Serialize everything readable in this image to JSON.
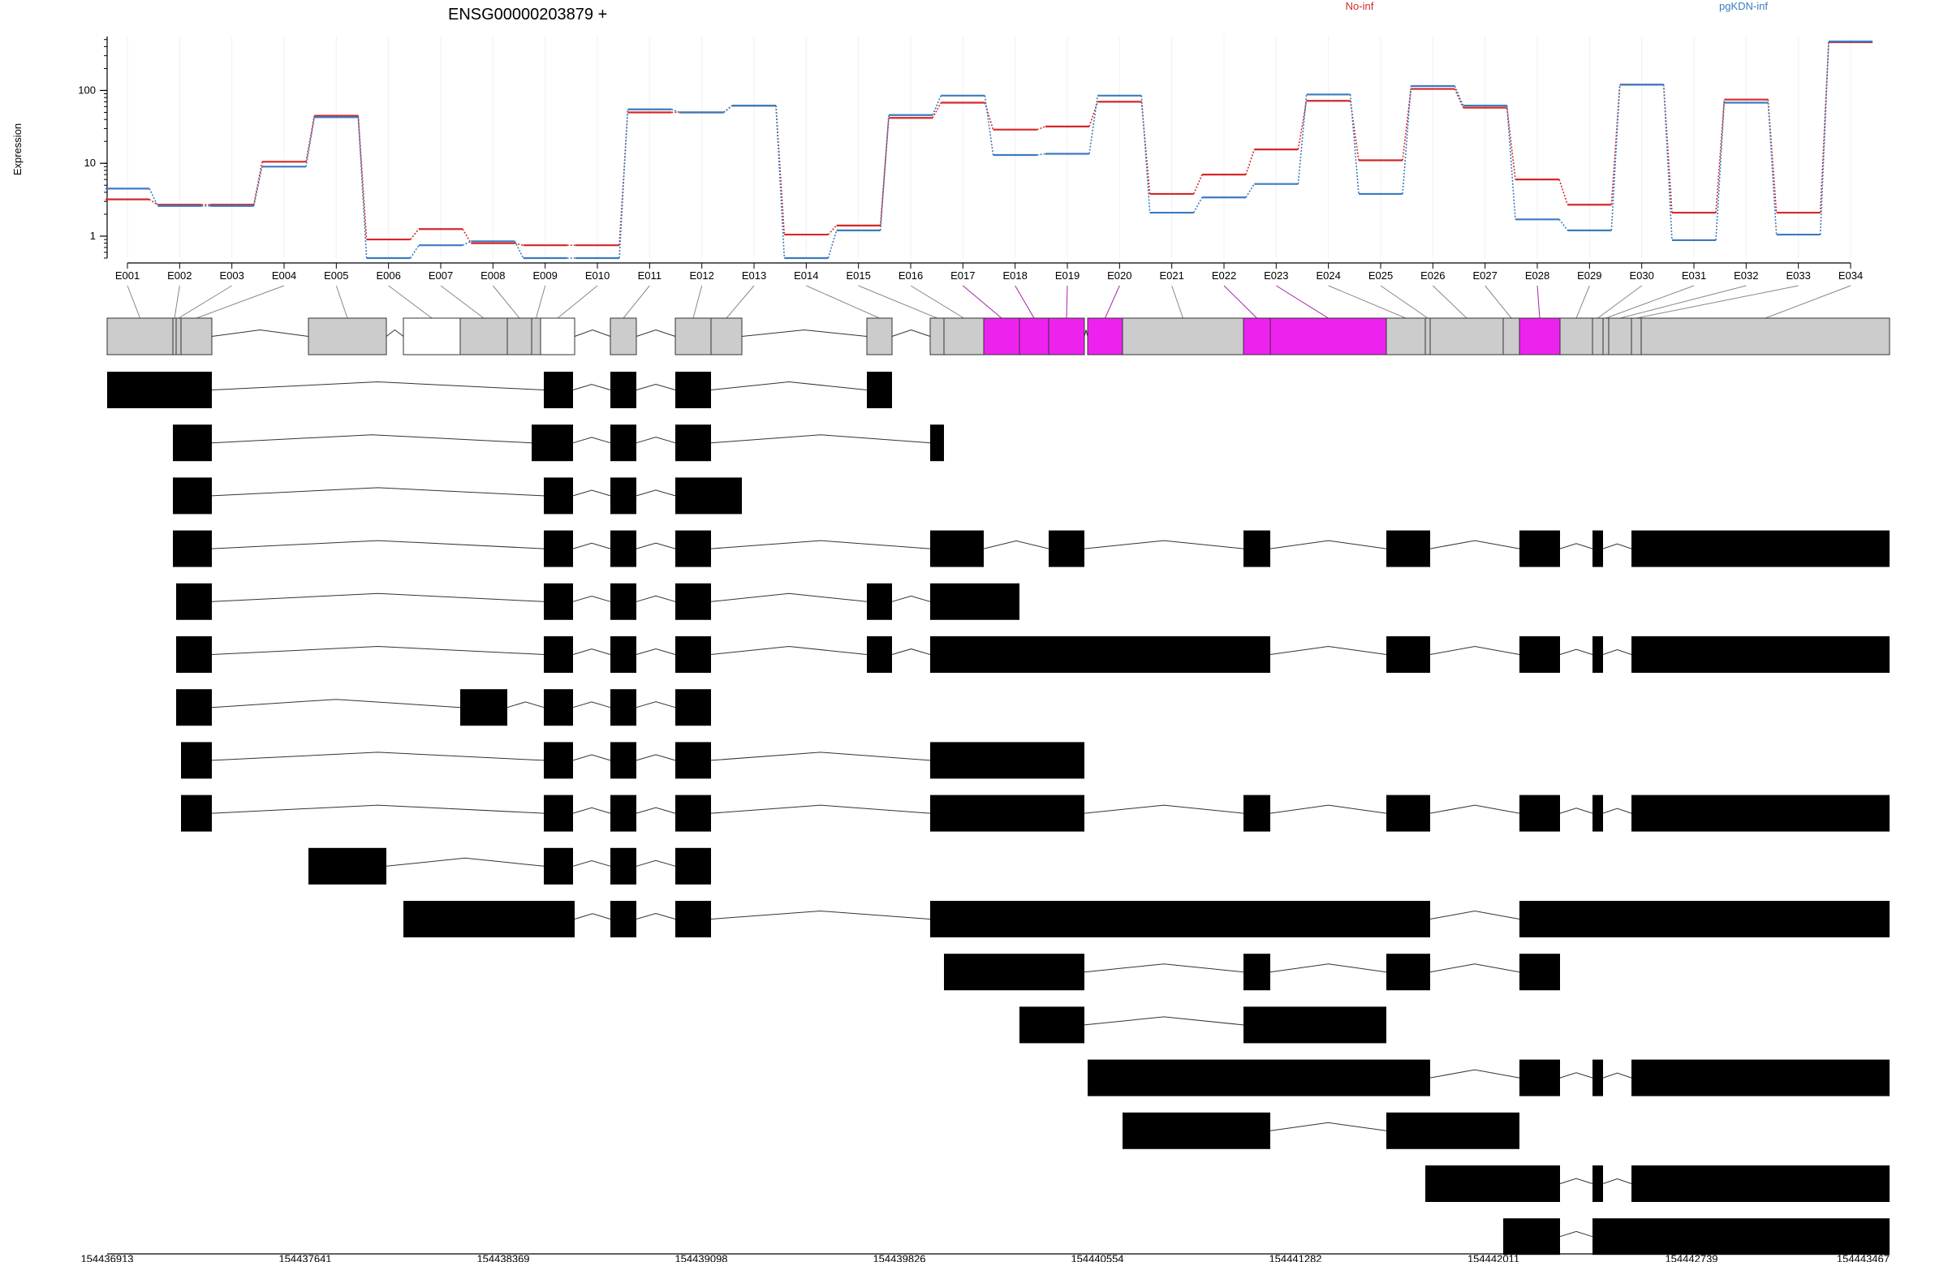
{
  "chart_data": {
    "type": "line",
    "title": "ENSG00000203879 +",
    "ylabel": "Expression",
    "yscale": "log",
    "ylim": [
      0.5,
      550
    ],
    "y_ticks": [
      1,
      10,
      100
    ],
    "y_tick_labels": [
      "1",
      "10",
      "100"
    ],
    "legend": {
      "placement": "top",
      "entries": [
        "No-inf",
        "pgKDN-inf"
      ]
    },
    "categories": [
      "E001",
      "E002",
      "E003",
      "E004",
      "E005",
      "E006",
      "E007",
      "E008",
      "E009",
      "E010",
      "E011",
      "E012",
      "E013",
      "E014",
      "E015",
      "E016",
      "E017",
      "E018",
      "E019",
      "E020",
      "E021",
      "E022",
      "E023",
      "E024",
      "E025",
      "E026",
      "E027",
      "E028",
      "E029",
      "E030",
      "E031",
      "E032",
      "E033",
      "E034"
    ],
    "series": [
      {
        "name": "No-inf",
        "color": "#d62728",
        "values": [
          3.2,
          2.7,
          2.7,
          10.5,
          45,
          0.9,
          1.25,
          0.8,
          0.75,
          0.75,
          50,
          50,
          62,
          1.05,
          1.4,
          42,
          68,
          29,
          32,
          70,
          3.8,
          7,
          15.5,
          72,
          11,
          105,
          58,
          6,
          2.7,
          120,
          2.1,
          75,
          2.1,
          460
        ]
      },
      {
        "name": "pgKDN-inf",
        "color": "#3b7bbf",
        "values": [
          4.5,
          2.6,
          2.6,
          9,
          43,
          0.5,
          0.75,
          0.85,
          0.5,
          0.5,
          55,
          50,
          62,
          0.5,
          1.2,
          46,
          85,
          13,
          13.5,
          85,
          2.1,
          3.4,
          5.2,
          88,
          3.8,
          115,
          62,
          1.7,
          1.2,
          120,
          0.88,
          68,
          1.05,
          470
        ]
      }
    ]
  },
  "exon_track": {
    "label_ids": [
      "E001",
      "E002",
      "E003",
      "E004",
      "E005",
      "E006",
      "E007",
      "E008",
      "E009",
      "E010",
      "E011",
      "E012",
      "E013",
      "E014",
      "E015",
      "E016",
      "E017",
      "E018",
      "E019",
      "E020",
      "E021",
      "E022",
      "E023",
      "E024",
      "E025",
      "E026",
      "E027",
      "E028",
      "E029",
      "E030",
      "E031",
      "E032",
      "E033",
      "E034"
    ],
    "exon_fill": "#cccccc",
    "empty_fill": "#ffffff",
    "highlight_fill": "#ee22ee",
    "highlight_ids": [
      "E017",
      "E018",
      "E019",
      "E020",
      "E022",
      "E023",
      "E028"
    ],
    "empty_ids": [
      "E006",
      "E010"
    ]
  },
  "genome_axis": {
    "start": 154436913,
    "end": 154443467,
    "tick_labels": [
      "154436913",
      "154437641",
      "154438369",
      "154439098",
      "154439826",
      "154440554",
      "154441282",
      "154442011",
      "154442739",
      "154443467"
    ]
  }
}
